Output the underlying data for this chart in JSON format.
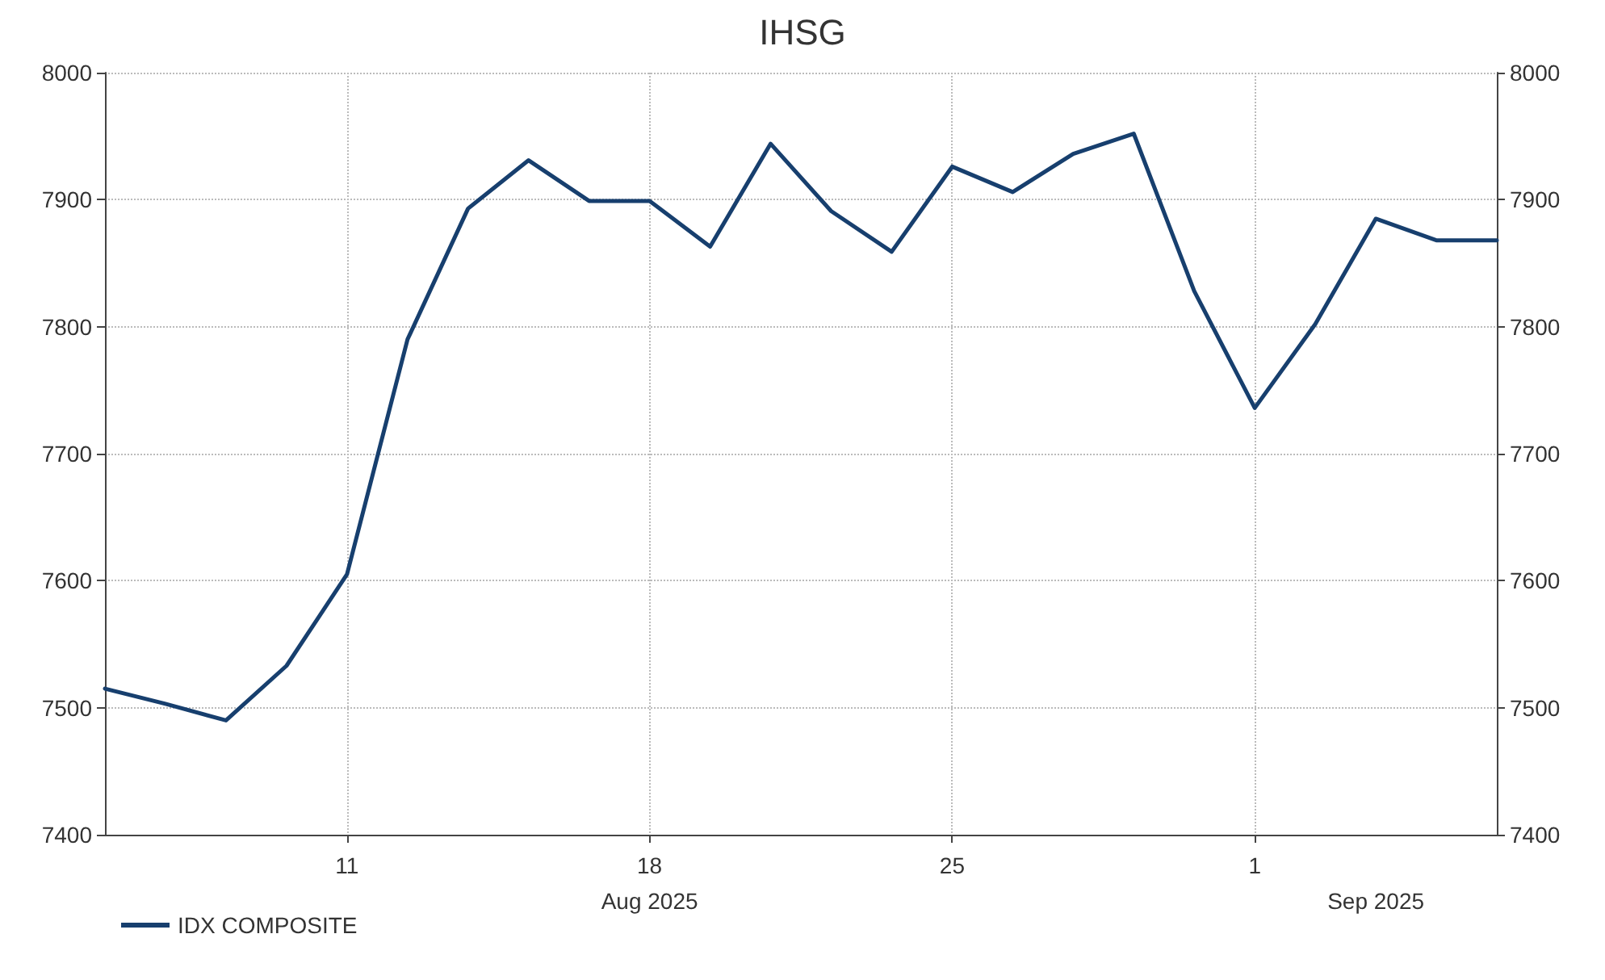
{
  "chart_data": {
    "type": "line",
    "title": "IHSG",
    "categories": [
      null,
      null,
      null,
      null,
      "11",
      null,
      null,
      null,
      null,
      "18\nAug 2025",
      null,
      null,
      null,
      null,
      "25",
      null,
      null,
      null,
      null,
      "1",
      null,
      "\nSep 2025",
      null,
      null
    ],
    "series": [
      {
        "name": "IDX COMPOSITE",
        "color": "#173f6e",
        "values": [
          7515,
          7503,
          7490,
          7533,
          7605,
          7790,
          7893,
          7931,
          7899,
          7899,
          7863,
          7944,
          7891,
          7859,
          7926,
          7906,
          7936,
          7952,
          7828,
          7736,
          7802,
          7885,
          7868,
          7868
        ]
      }
    ],
    "ylim": [
      7400,
      8000
    ],
    "yticks": [
      7400,
      7500,
      7600,
      7700,
      7800,
      7900,
      8000
    ],
    "y2lim": [
      7400,
      8000
    ],
    "y2ticks": [
      7400,
      7500,
      7600,
      7700,
      7800,
      7900,
      8000
    ],
    "grid": true,
    "legend": "bottom left",
    "marker": "none",
    "line_style": "solid"
  }
}
